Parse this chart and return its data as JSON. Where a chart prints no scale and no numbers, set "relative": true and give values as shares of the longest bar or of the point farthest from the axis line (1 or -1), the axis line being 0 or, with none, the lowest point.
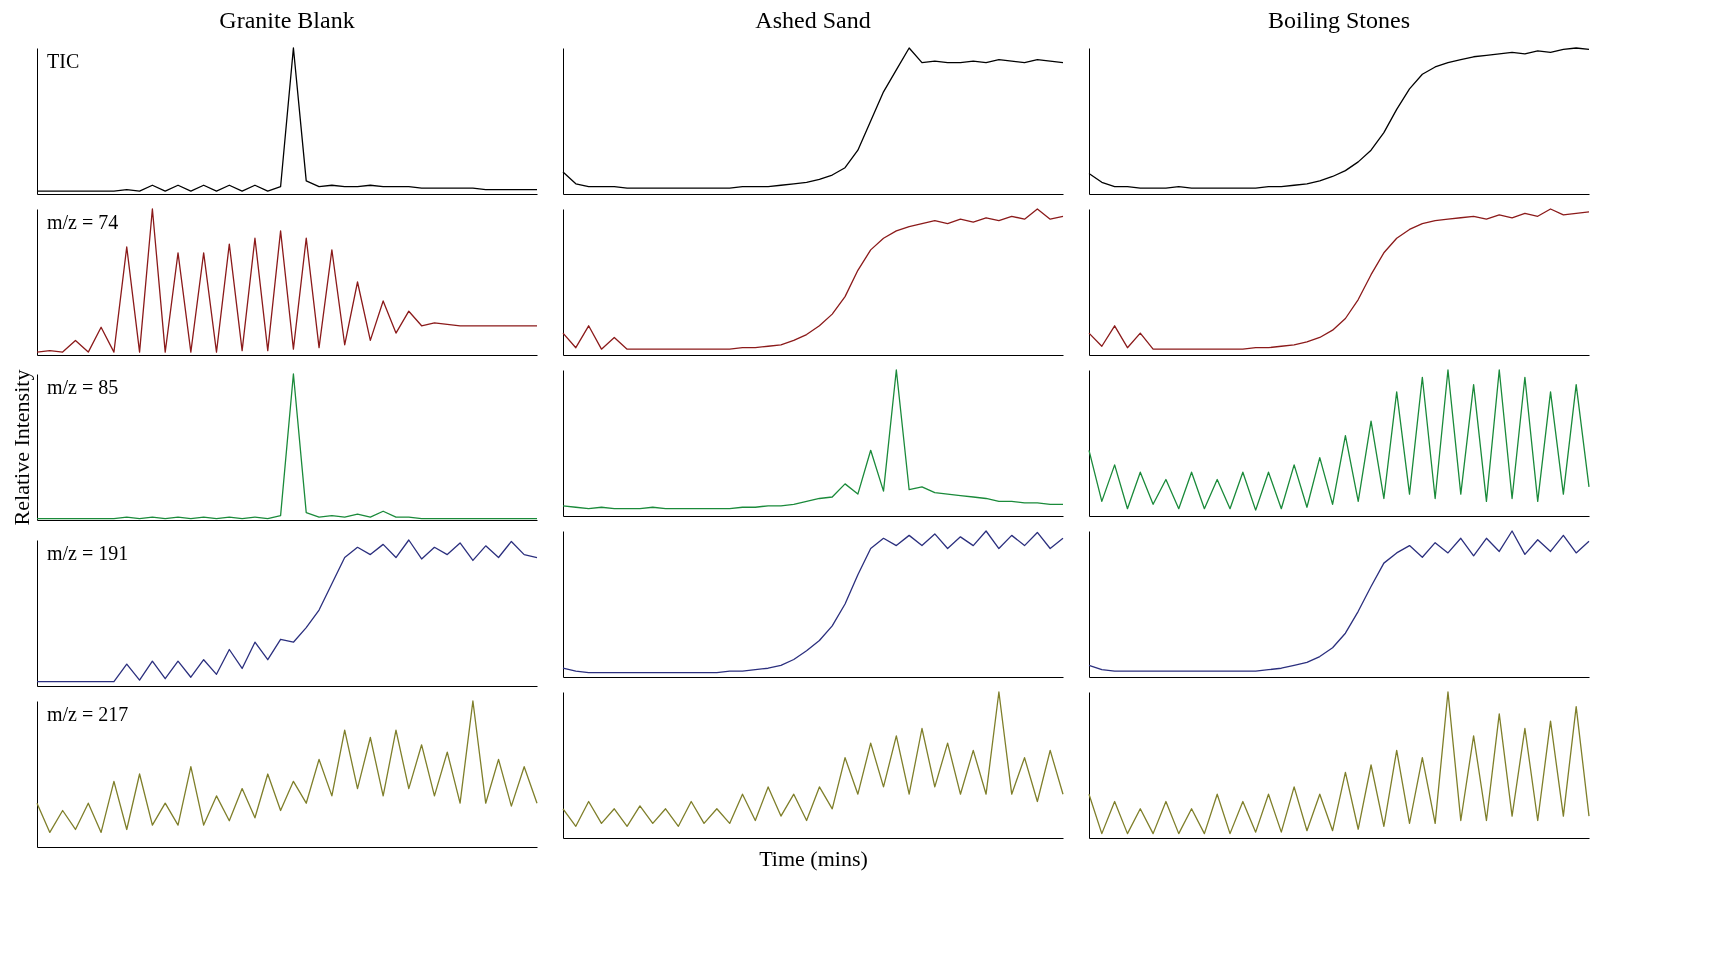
{
  "chart_data": [
    {
      "type": "line",
      "title": "Granite Blank",
      "relative": true,
      "annotations": [
        "TIC"
      ],
      "categories": [
        null,
        null,
        null,
        null,
        null,
        null,
        null,
        null,
        null,
        null,
        null,
        null,
        null,
        null,
        null,
        null,
        null,
        null,
        null,
        null,
        null,
        null,
        null,
        null,
        null,
        null,
        null,
        null,
        null,
        null,
        null,
        null,
        null,
        null,
        null,
        null,
        null,
        null,
        null,
        null
      ],
      "series": [
        {
          "color": "#000000",
          "values": [
            0.02,
            0.02,
            0.02,
            0.02,
            0.02,
            0.02,
            0.02,
            0.03,
            0.02,
            0.06,
            0.02,
            0.06,
            0.02,
            0.06,
            0.02,
            0.06,
            0.02,
            0.06,
            0.02,
            0.05,
            1.0,
            0.09,
            0.05,
            0.06,
            0.05,
            0.05,
            0.06,
            0.05,
            0.05,
            0.05,
            0.04,
            0.04,
            0.04,
            0.04,
            0.04,
            0.03,
            0.03,
            0.03,
            0.03,
            0.03
          ]
        }
      ]
    },
    {
      "type": "line",
      "title": "Ashed Sand",
      "relative": true,
      "categories": [
        null,
        null,
        null,
        null,
        null,
        null,
        null,
        null,
        null,
        null,
        null,
        null,
        null,
        null,
        null,
        null,
        null,
        null,
        null,
        null,
        null,
        null,
        null,
        null,
        null,
        null,
        null,
        null,
        null,
        null,
        null,
        null,
        null,
        null,
        null,
        null,
        null,
        null,
        null,
        null
      ],
      "series": [
        {
          "color": "#000000",
          "values": [
            0.15,
            0.07,
            0.05,
            0.05,
            0.05,
            0.04,
            0.04,
            0.04,
            0.04,
            0.04,
            0.04,
            0.04,
            0.04,
            0.04,
            0.05,
            0.05,
            0.05,
            0.06,
            0.07,
            0.08,
            0.1,
            0.13,
            0.18,
            0.3,
            0.5,
            0.7,
            0.85,
            1.0,
            0.9,
            0.91,
            0.9,
            0.9,
            0.91,
            0.9,
            0.92,
            0.91,
            0.9,
            0.92,
            0.91,
            0.9
          ]
        }
      ]
    },
    {
      "type": "line",
      "title": "Boiling Stones",
      "relative": true,
      "categories": [
        null,
        null,
        null,
        null,
        null,
        null,
        null,
        null,
        null,
        null,
        null,
        null,
        null,
        null,
        null,
        null,
        null,
        null,
        null,
        null,
        null,
        null,
        null,
        null,
        null,
        null,
        null,
        null,
        null,
        null,
        null,
        null,
        null,
        null,
        null,
        null,
        null,
        null,
        null,
        null
      ],
      "series": [
        {
          "color": "#000000",
          "values": [
            0.14,
            0.08,
            0.05,
            0.05,
            0.04,
            0.04,
            0.04,
            0.05,
            0.04,
            0.04,
            0.04,
            0.04,
            0.04,
            0.04,
            0.05,
            0.05,
            0.06,
            0.07,
            0.09,
            0.12,
            0.16,
            0.22,
            0.3,
            0.42,
            0.58,
            0.72,
            0.82,
            0.87,
            0.9,
            0.92,
            0.94,
            0.95,
            0.96,
            0.97,
            0.96,
            0.98,
            0.97,
            0.99,
            1.0,
            0.99
          ]
        }
      ]
    },
    {
      "type": "line",
      "relative": true,
      "annotations": [
        "m/z = 74"
      ],
      "categories": [
        null,
        null,
        null,
        null,
        null,
        null,
        null,
        null,
        null,
        null,
        null,
        null,
        null,
        null,
        null,
        null,
        null,
        null,
        null,
        null,
        null,
        null,
        null,
        null,
        null,
        null,
        null,
        null,
        null,
        null,
        null,
        null,
        null,
        null,
        null,
        null,
        null,
        null,
        null,
        null
      ],
      "series": [
        {
          "color": "#8b1a1a",
          "values": [
            0.02,
            0.03,
            0.02,
            0.1,
            0.02,
            0.19,
            0.02,
            0.74,
            0.02,
            1.0,
            0.02,
            0.7,
            0.02,
            0.7,
            0.02,
            0.76,
            0.03,
            0.8,
            0.03,
            0.85,
            0.04,
            0.8,
            0.05,
            0.72,
            0.07,
            0.5,
            0.1,
            0.37,
            0.15,
            0.3,
            0.2,
            0.22,
            0.21,
            0.2,
            0.2,
            0.2,
            0.2,
            0.2,
            0.2,
            0.2
          ]
        }
      ]
    },
    {
      "type": "line",
      "relative": true,
      "categories": [
        null,
        null,
        null,
        null,
        null,
        null,
        null,
        null,
        null,
        null,
        null,
        null,
        null,
        null,
        null,
        null,
        null,
        null,
        null,
        null,
        null,
        null,
        null,
        null,
        null,
        null,
        null,
        null,
        null,
        null,
        null,
        null,
        null,
        null,
        null,
        null,
        null,
        null,
        null,
        null
      ],
      "series": [
        {
          "color": "#8b1a1a",
          "values": [
            0.15,
            0.05,
            0.2,
            0.04,
            0.12,
            0.04,
            0.04,
            0.04,
            0.04,
            0.04,
            0.04,
            0.04,
            0.04,
            0.04,
            0.05,
            0.05,
            0.06,
            0.07,
            0.1,
            0.14,
            0.2,
            0.28,
            0.4,
            0.58,
            0.72,
            0.8,
            0.85,
            0.88,
            0.9,
            0.92,
            0.9,
            0.93,
            0.91,
            0.94,
            0.92,
            0.95,
            0.93,
            1.0,
            0.93,
            0.95
          ]
        }
      ]
    },
    {
      "type": "line",
      "relative": true,
      "categories": [
        null,
        null,
        null,
        null,
        null,
        null,
        null,
        null,
        null,
        null,
        null,
        null,
        null,
        null,
        null,
        null,
        null,
        null,
        null,
        null,
        null,
        null,
        null,
        null,
        null,
        null,
        null,
        null,
        null,
        null,
        null,
        null,
        null,
        null,
        null,
        null,
        null,
        null,
        null,
        null
      ],
      "series": [
        {
          "color": "#8b1a1a",
          "values": [
            0.15,
            0.06,
            0.2,
            0.05,
            0.15,
            0.04,
            0.04,
            0.04,
            0.04,
            0.04,
            0.04,
            0.04,
            0.04,
            0.05,
            0.05,
            0.06,
            0.07,
            0.09,
            0.12,
            0.17,
            0.25,
            0.38,
            0.55,
            0.7,
            0.8,
            0.86,
            0.9,
            0.92,
            0.93,
            0.94,
            0.95,
            0.93,
            0.96,
            0.94,
            0.97,
            0.95,
            1.0,
            0.96,
            0.97,
            0.98
          ]
        }
      ]
    },
    {
      "type": "line",
      "relative": true,
      "ylabel": "Relative Intensity",
      "annotations": [
        "m/z = 85"
      ],
      "categories": [
        null,
        null,
        null,
        null,
        null,
        null,
        null,
        null,
        null,
        null,
        null,
        null,
        null,
        null,
        null,
        null,
        null,
        null,
        null,
        null,
        null,
        null,
        null,
        null,
        null,
        null,
        null,
        null,
        null,
        null,
        null,
        null,
        null,
        null,
        null,
        null,
        null,
        null,
        null,
        null
      ],
      "series": [
        {
          "color": "#1a8a3a",
          "values": [
            0.01,
            0.01,
            0.01,
            0.01,
            0.01,
            0.01,
            0.01,
            0.02,
            0.01,
            0.02,
            0.01,
            0.02,
            0.01,
            0.02,
            0.01,
            0.02,
            0.01,
            0.02,
            0.01,
            0.03,
            1.0,
            0.05,
            0.02,
            0.03,
            0.02,
            0.04,
            0.02,
            0.06,
            0.02,
            0.02,
            0.01,
            0.01,
            0.01,
            0.01,
            0.01,
            0.01,
            0.01,
            0.01,
            0.01,
            0.01
          ]
        }
      ]
    },
    {
      "type": "line",
      "relative": true,
      "categories": [
        null,
        null,
        null,
        null,
        null,
        null,
        null,
        null,
        null,
        null,
        null,
        null,
        null,
        null,
        null,
        null,
        null,
        null,
        null,
        null,
        null,
        null,
        null,
        null,
        null,
        null,
        null,
        null,
        null,
        null,
        null,
        null,
        null,
        null,
        null,
        null,
        null,
        null,
        null,
        null
      ],
      "series": [
        {
          "color": "#1a8a3a",
          "values": [
            0.07,
            0.06,
            0.05,
            0.06,
            0.05,
            0.05,
            0.05,
            0.06,
            0.05,
            0.05,
            0.05,
            0.05,
            0.05,
            0.05,
            0.06,
            0.06,
            0.07,
            0.07,
            0.08,
            0.1,
            0.12,
            0.13,
            0.22,
            0.15,
            0.45,
            0.17,
            1.0,
            0.18,
            0.2,
            0.16,
            0.15,
            0.14,
            0.13,
            0.12,
            0.1,
            0.1,
            0.09,
            0.09,
            0.08,
            0.08
          ]
        }
      ]
    },
    {
      "type": "line",
      "relative": true,
      "categories": [
        null,
        null,
        null,
        null,
        null,
        null,
        null,
        null,
        null,
        null,
        null,
        null,
        null,
        null,
        null,
        null,
        null,
        null,
        null,
        null,
        null,
        null,
        null,
        null,
        null,
        null,
        null,
        null,
        null,
        null,
        null,
        null,
        null,
        null,
        null,
        null,
        null,
        null,
        null,
        null
      ],
      "series": [
        {
          "color": "#1a8a3a",
          "values": [
            0.45,
            0.1,
            0.35,
            0.05,
            0.3,
            0.08,
            0.25,
            0.05,
            0.3,
            0.05,
            0.25,
            0.05,
            0.3,
            0.04,
            0.3,
            0.05,
            0.35,
            0.06,
            0.4,
            0.08,
            0.55,
            0.1,
            0.65,
            0.12,
            0.85,
            0.15,
            0.95,
            0.12,
            1.0,
            0.15,
            0.9,
            0.1,
            1.0,
            0.12,
            0.95,
            0.1,
            0.85,
            0.15,
            0.9,
            0.2
          ]
        }
      ]
    },
    {
      "type": "line",
      "relative": true,
      "annotations": [
        "m/z = 191"
      ],
      "categories": [
        null,
        null,
        null,
        null,
        null,
        null,
        null,
        null,
        null,
        null,
        null,
        null,
        null,
        null,
        null,
        null,
        null,
        null,
        null,
        null,
        null,
        null,
        null,
        null,
        null,
        null,
        null,
        null,
        null,
        null,
        null,
        null,
        null,
        null,
        null,
        null,
        null,
        null,
        null,
        null
      ],
      "series": [
        {
          "color": "#2b2f7e",
          "values": [
            0.03,
            0.03,
            0.03,
            0.03,
            0.03,
            0.03,
            0.03,
            0.15,
            0.04,
            0.17,
            0.05,
            0.17,
            0.06,
            0.18,
            0.08,
            0.25,
            0.12,
            0.3,
            0.18,
            0.32,
            0.3,
            0.4,
            0.52,
            0.7,
            0.88,
            0.95,
            0.9,
            0.97,
            0.88,
            1.0,
            0.87,
            0.95,
            0.9,
            0.98,
            0.86,
            0.96,
            0.88,
            0.99,
            0.9,
            0.88
          ]
        }
      ]
    },
    {
      "type": "line",
      "relative": true,
      "categories": [
        null,
        null,
        null,
        null,
        null,
        null,
        null,
        null,
        null,
        null,
        null,
        null,
        null,
        null,
        null,
        null,
        null,
        null,
        null,
        null,
        null,
        null,
        null,
        null,
        null,
        null,
        null,
        null,
        null,
        null,
        null,
        null,
        null,
        null,
        null,
        null,
        null,
        null,
        null,
        null
      ],
      "series": [
        {
          "color": "#2b2f7e",
          "values": [
            0.06,
            0.04,
            0.03,
            0.03,
            0.03,
            0.03,
            0.03,
            0.03,
            0.03,
            0.03,
            0.03,
            0.03,
            0.03,
            0.04,
            0.04,
            0.05,
            0.06,
            0.08,
            0.12,
            0.18,
            0.25,
            0.35,
            0.5,
            0.7,
            0.88,
            0.95,
            0.9,
            0.97,
            0.9,
            0.98,
            0.88,
            0.96,
            0.9,
            1.0,
            0.88,
            0.97,
            0.9,
            0.99,
            0.88,
            0.95
          ]
        }
      ]
    },
    {
      "type": "line",
      "relative": true,
      "categories": [
        null,
        null,
        null,
        null,
        null,
        null,
        null,
        null,
        null,
        null,
        null,
        null,
        null,
        null,
        null,
        null,
        null,
        null,
        null,
        null,
        null,
        null,
        null,
        null,
        null,
        null,
        null,
        null,
        null,
        null,
        null,
        null,
        null,
        null,
        null,
        null,
        null,
        null,
        null,
        null
      ],
      "series": [
        {
          "color": "#2b2f7e",
          "values": [
            0.08,
            0.05,
            0.04,
            0.04,
            0.04,
            0.04,
            0.04,
            0.04,
            0.04,
            0.04,
            0.04,
            0.04,
            0.04,
            0.04,
            0.05,
            0.06,
            0.08,
            0.1,
            0.14,
            0.2,
            0.3,
            0.45,
            0.62,
            0.78,
            0.85,
            0.9,
            0.82,
            0.92,
            0.85,
            0.95,
            0.83,
            0.95,
            0.86,
            1.0,
            0.84,
            0.94,
            0.86,
            0.97,
            0.85,
            0.93
          ]
        }
      ]
    },
    {
      "type": "line",
      "relative": true,
      "annotations": [
        "m/z = 217"
      ],
      "categories": [
        null,
        null,
        null,
        null,
        null,
        null,
        null,
        null,
        null,
        null,
        null,
        null,
        null,
        null,
        null,
        null,
        null,
        null,
        null,
        null,
        null,
        null,
        null,
        null,
        null,
        null,
        null,
        null,
        null,
        null,
        null,
        null,
        null,
        null,
        null,
        null,
        null,
        null,
        null,
        null
      ],
      "series": [
        {
          "color": "#7f7f2a",
          "values": [
            0.3,
            0.1,
            0.25,
            0.12,
            0.3,
            0.1,
            0.45,
            0.12,
            0.5,
            0.15,
            0.3,
            0.15,
            0.55,
            0.15,
            0.35,
            0.18,
            0.4,
            0.2,
            0.5,
            0.25,
            0.45,
            0.3,
            0.6,
            0.35,
            0.8,
            0.4,
            0.75,
            0.35,
            0.8,
            0.4,
            0.7,
            0.35,
            0.65,
            0.3,
            1.0,
            0.3,
            0.6,
            0.28,
            0.55,
            0.3
          ]
        }
      ]
    },
    {
      "type": "line",
      "relative": true,
      "xlabel": "Time (mins)",
      "categories": [
        null,
        null,
        null,
        null,
        null,
        null,
        null,
        null,
        null,
        null,
        null,
        null,
        null,
        null,
        null,
        null,
        null,
        null,
        null,
        null,
        null,
        null,
        null,
        null,
        null,
        null,
        null,
        null,
        null,
        null,
        null,
        null,
        null,
        null,
        null,
        null,
        null,
        null,
        null,
        null
      ],
      "series": [
        {
          "color": "#7f7f2a",
          "values": [
            0.2,
            0.08,
            0.25,
            0.1,
            0.2,
            0.08,
            0.22,
            0.1,
            0.2,
            0.08,
            0.25,
            0.1,
            0.2,
            0.1,
            0.3,
            0.12,
            0.35,
            0.15,
            0.3,
            0.12,
            0.35,
            0.2,
            0.55,
            0.3,
            0.65,
            0.35,
            0.7,
            0.3,
            0.75,
            0.35,
            0.65,
            0.3,
            0.6,
            0.3,
            1.0,
            0.3,
            0.55,
            0.25,
            0.6,
            0.3
          ]
        }
      ]
    },
    {
      "type": "line",
      "relative": true,
      "categories": [
        null,
        null,
        null,
        null,
        null,
        null,
        null,
        null,
        null,
        null,
        null,
        null,
        null,
        null,
        null,
        null,
        null,
        null,
        null,
        null,
        null,
        null,
        null,
        null,
        null,
        null,
        null,
        null,
        null,
        null,
        null,
        null,
        null,
        null,
        null,
        null,
        null,
        null,
        null,
        null
      ],
      "series": [
        {
          "color": "#7f7f2a",
          "values": [
            0.3,
            0.03,
            0.25,
            0.03,
            0.2,
            0.03,
            0.25,
            0.03,
            0.2,
            0.03,
            0.3,
            0.03,
            0.25,
            0.04,
            0.3,
            0.04,
            0.35,
            0.05,
            0.3,
            0.05,
            0.45,
            0.06,
            0.5,
            0.08,
            0.6,
            0.1,
            0.55,
            0.1,
            1.0,
            0.12,
            0.7,
            0.12,
            0.85,
            0.15,
            0.75,
            0.12,
            0.8,
            0.15,
            0.9,
            0.15
          ]
        }
      ]
    }
  ]
}
